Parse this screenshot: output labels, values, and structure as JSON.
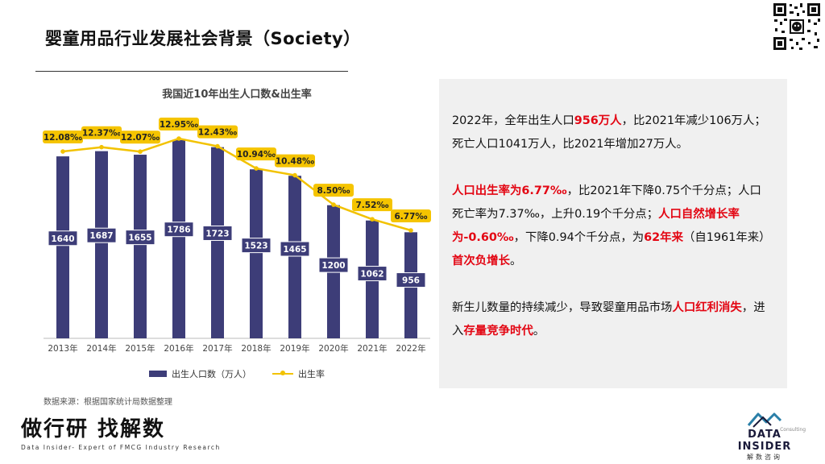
{
  "slide": {
    "title": "婴童用品行业发展社会背景（Society）",
    "source": "数据来源：根据国家统计局数据整理"
  },
  "colors": {
    "bar": "#3d3d78",
    "line": "#f2c200",
    "highlight": "#e30613",
    "panel_bg": "#f0f0f0"
  },
  "chart_data": {
    "type": "bar",
    "title": "我国近10年出生人口数&出生率",
    "categories": [
      "2013年",
      "2014年",
      "2015年",
      "2016年",
      "2017年",
      "2018年",
      "2019年",
      "2020年",
      "2021年",
      "2022年"
    ],
    "series": [
      {
        "name": "出生人口数（万人）",
        "type": "bar",
        "values": [
          1640,
          1687,
          1655,
          1786,
          1723,
          1523,
          1465,
          1200,
          1062,
          956
        ]
      },
      {
        "name": "出生率",
        "type": "line",
        "values": [
          12.08,
          12.37,
          12.07,
          12.95,
          12.43,
          10.94,
          10.48,
          8.5,
          7.52,
          6.77
        ],
        "labels": [
          "12.08‰",
          "12.37‰",
          "12.07‰",
          "12.95‰",
          "12.43‰",
          "10.94‰",
          "10.48‰",
          "8.50‰",
          "7.52‰",
          "6.77‰"
        ]
      }
    ],
    "legend_position": "bottom",
    "grid": false
  },
  "panel": {
    "p1": [
      "2022年，全年出生人口",
      "956万人",
      "，比2021年减少106万人；死亡人口1041万人，比2021年增加27万人。"
    ],
    "p2": [
      "人口出生率为6.77‰",
      "，比2021年下降0.75个千分点；人口死亡率为7.37‰，上升0.19个千分点；",
      "人口自然增长率为-0.60‰",
      "，下降0.94个千分点，为",
      "62年来",
      "（自1961年来）",
      "首次负增长",
      "。"
    ],
    "p3": [
      "新生儿数量的持续减少，导致婴童用品市场",
      "人口红利消失",
      "，进入",
      "存量竞争时代",
      "。"
    ]
  },
  "brand_left": {
    "name": "做行研 找解数",
    "tagline": "Data Insider- Expert of FMCG Industry Research"
  },
  "brand_right": {
    "name": "DATA INSIDER",
    "sub": "解数咨询",
    "consulting": "Consulting"
  },
  "icons": {
    "qr": "qr-code-icon",
    "logo": "data-insider-logo-icon"
  }
}
